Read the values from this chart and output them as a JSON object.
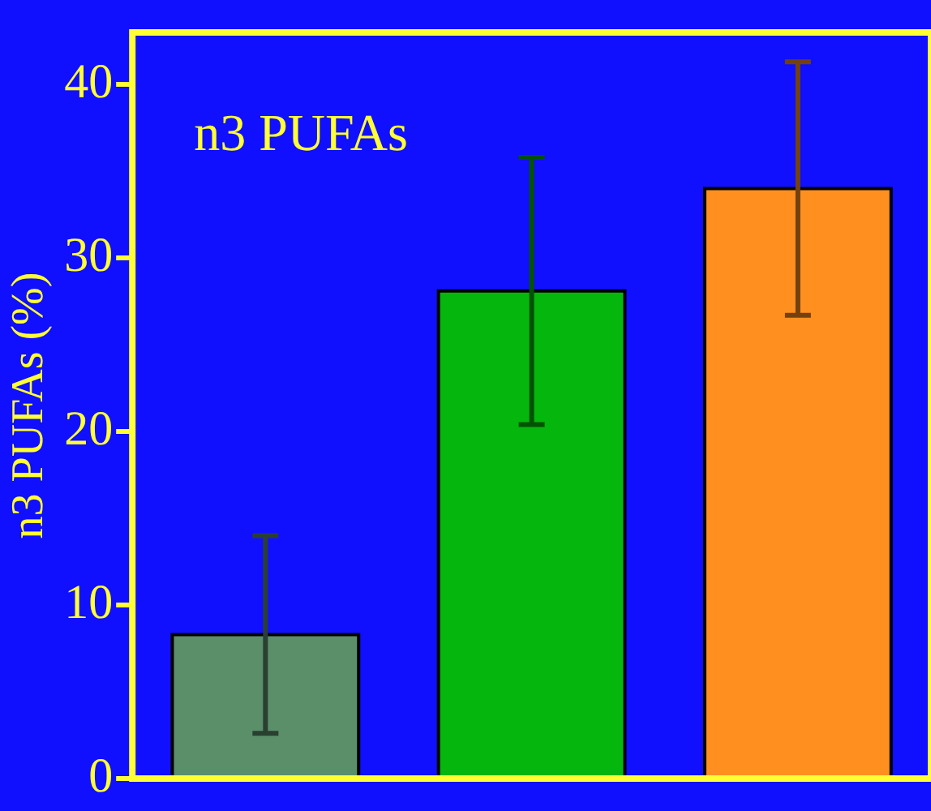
{
  "chart_data": {
    "type": "bar",
    "ylabel": "n3 PUFAs (%)",
    "annotations": [
      "n3 PUFAs"
    ],
    "categories": [
      null,
      null,
      null
    ],
    "values": [
      8.3,
      28.1,
      34.0
    ],
    "colors": [
      "#5a8f6a",
      "#05b60d",
      "#ff9020"
    ],
    "errors": [
      [
        2.6,
        14.0
      ],
      [
        20.4,
        35.8
      ],
      [
        26.7,
        41.3
      ]
    ],
    "ylim": [
      0,
      43
    ],
    "yticks": [
      0,
      10,
      20,
      30,
      40
    ],
    "grid": false,
    "legend": false
  }
}
